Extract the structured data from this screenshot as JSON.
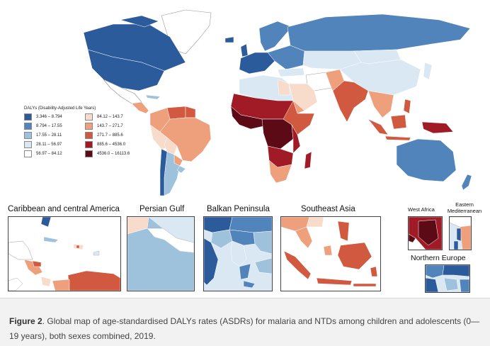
{
  "legend": {
    "title": "DALYs (Disability-Adjusted Life Years)",
    "items": [
      {
        "label": "3.346 – 8.794",
        "color": "#2c5b9c"
      },
      {
        "label": "84.12 – 143.7",
        "color": "#f8dccb"
      },
      {
        "label": "8.794 – 17.55",
        "color": "#5284bc"
      },
      {
        "label": "143.7 – 271.7",
        "color": "#eea07d"
      },
      {
        "label": "17.55 – 28.11",
        "color": "#9ec1dc"
      },
      {
        "label": "271.7 – 885.6",
        "color": "#d0593f"
      },
      {
        "label": "28.11 – 56.97",
        "color": "#d9e8f3"
      },
      {
        "label": "885.6 – 4536.0",
        "color": "#a11b26"
      },
      {
        "label": "56.97 – 84.12",
        "color": "#ffffff"
      },
      {
        "label": "4536.0 – 16113.6",
        "color": "#5c0a16"
      }
    ]
  },
  "insets": {
    "caribbean": "Caribbean and central America",
    "persian_gulf": "Persian Gulf",
    "balkan": "Balkan Peninsula",
    "southeast_asia": "Southeast Asia",
    "west_africa": "West Africa",
    "eastern_med_line1": "Eastern",
    "eastern_med_line2": "Mediterranean",
    "northern_europe": "Northern Europe"
  },
  "caption": {
    "label": "Figure 2",
    "text": ". Global map of age-standardised DALYs rates (ASDRs) for malaria and NTDs among children and adolescents (0—19 years), both sexes combined, 2019."
  }
}
